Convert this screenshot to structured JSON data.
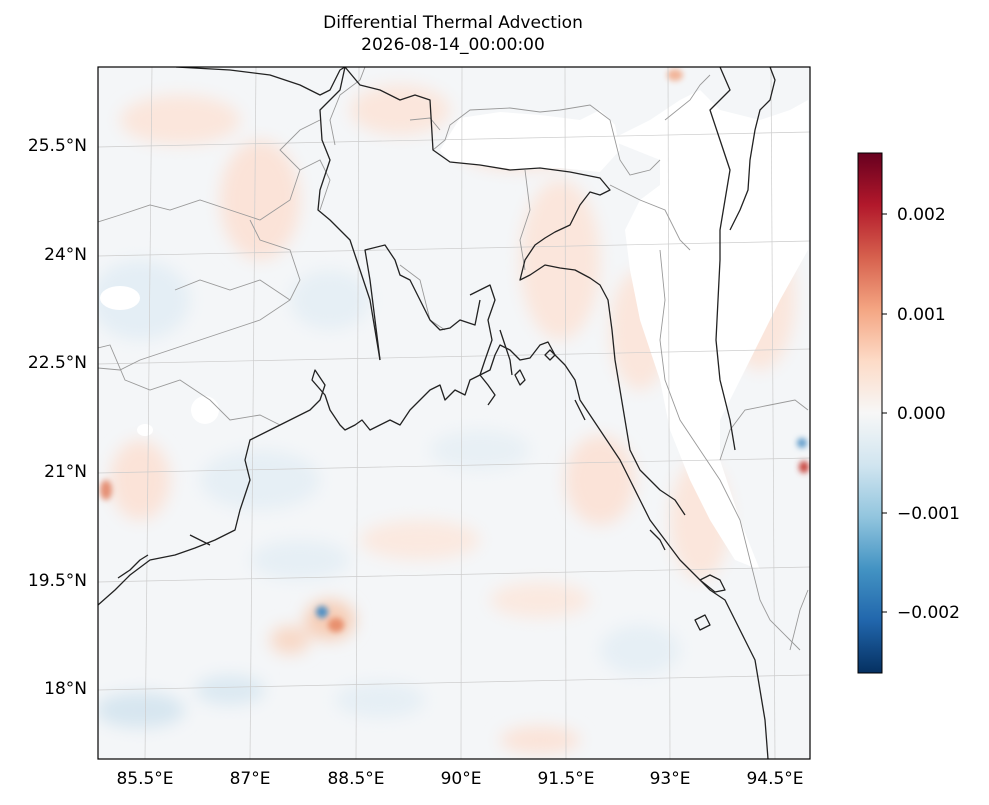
{
  "title": "Differential Thermal Advection",
  "subtitle": "2026-08-14_00:00:00",
  "lat_labels": [
    "25.5°N",
    "24°N",
    "22.5°N",
    "21°N",
    "19.5°N",
    "18°N"
  ],
  "lon_labels": [
    "85.5°E",
    "87°E",
    "88.5°E",
    "90°E",
    "91.5°E",
    "93°E",
    "94.5°E"
  ],
  "colorbar": {
    "colormap": "RdBu_r",
    "min": -0.0026,
    "max": 0.0026,
    "ticks": [
      "0.002",
      "0.001",
      "0.000",
      "−0.001",
      "−0.002"
    ],
    "colors": [
      "#67001f",
      "#b2182b",
      "#d6604d",
      "#f4a582",
      "#fddbc7",
      "#f7f7f7",
      "#d1e5f0",
      "#92c5de",
      "#4393c3",
      "#2166ac",
      "#053061"
    ]
  },
  "colors": {
    "coastline": "#222222",
    "borders": "#999999",
    "gridlines": "#cccccc",
    "frame": "#000000"
  }
}
